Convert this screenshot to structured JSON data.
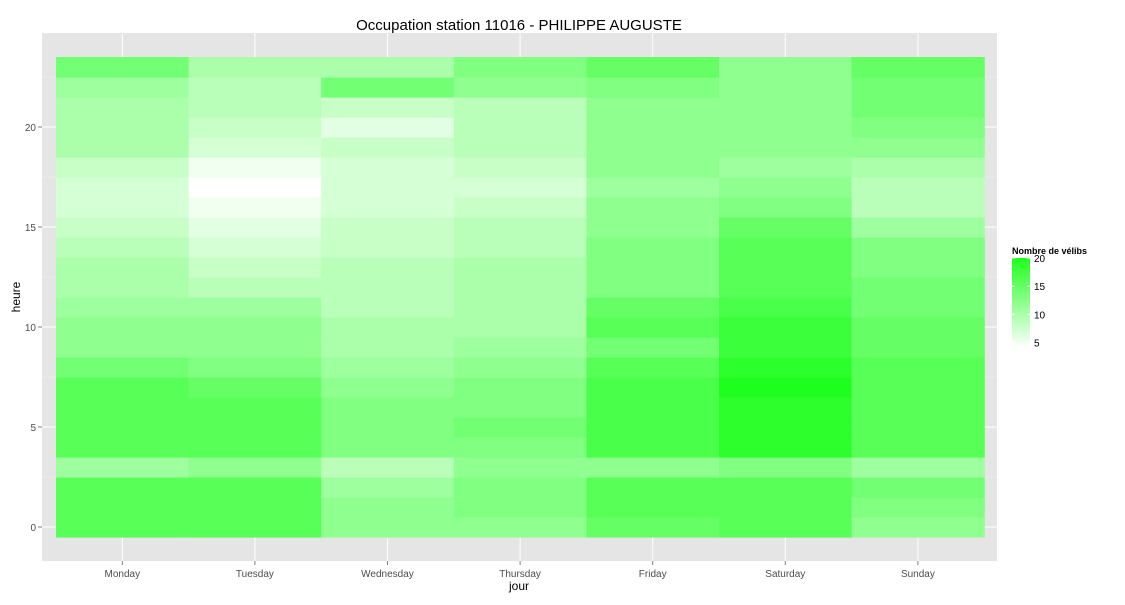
{
  "chart_data": {
    "type": "heatmap",
    "title": "Occupation station 11016 - PHILIPPE AUGUSTE",
    "xlabel": "jour",
    "ylabel": "heure",
    "categories": [
      "Monday",
      "Tuesday",
      "Wednesday",
      "Thursday",
      "Friday",
      "Saturday",
      "Sunday"
    ],
    "y": [
      0,
      1,
      2,
      3,
      4,
      5,
      6,
      7,
      8,
      9,
      10,
      11,
      12,
      13,
      14,
      15,
      16,
      17,
      18,
      19,
      20,
      21,
      22,
      23
    ],
    "ylim": [
      -0.5,
      23.5
    ],
    "yticks": [
      0,
      5,
      10,
      15,
      20
    ],
    "grid": true,
    "legend": {
      "title": "Nombre de vélibs",
      "position": "right",
      "min": 4,
      "max": 20,
      "ticks": [
        5,
        10,
        15,
        20
      ],
      "low_color": "#ffffff",
      "high_color": "#1fff1f"
    },
    "values": [
      [
        16,
        16,
        16,
        11,
        16,
        16,
        16,
        16,
        14,
        12,
        12,
        11,
        10,
        10,
        9,
        8,
        7,
        7,
        8,
        10,
        10,
        10,
        11,
        14
      ],
      [
        16,
        16,
        16,
        12,
        16,
        16,
        16,
        15,
        13,
        12,
        12,
        11,
        9,
        8,
        7,
        6,
        5,
        4,
        5,
        7,
        8,
        9,
        9,
        10
      ],
      [
        12,
        12,
        11,
        9,
        13,
        13,
        13,
        12,
        11,
        10,
        10,
        9,
        9,
        9,
        8,
        8,
        7,
        7,
        7,
        8,
        6,
        8,
        14,
        10
      ],
      [
        12,
        13,
        13,
        12,
        13,
        14,
        13,
        13,
        12,
        11,
        10,
        10,
        10,
        10,
        9,
        9,
        8,
        7,
        8,
        9,
        9,
        9,
        12,
        13
      ],
      [
        15,
        16,
        16,
        12,
        17,
        17,
        17,
        17,
        16,
        14,
        16,
        15,
        13,
        13,
        13,
        12,
        12,
        11,
        12,
        12,
        12,
        12,
        13,
        15
      ],
      [
        16,
        16,
        16,
        13,
        19,
        19,
        19,
        20,
        19,
        18,
        18,
        17,
        16,
        16,
        16,
        15,
        13,
        12,
        11,
        12,
        12,
        12,
        12,
        12
      ],
      [
        12,
        13,
        14,
        11,
        16,
        16,
        16,
        16,
        16,
        15,
        15,
        14,
        14,
        13,
        13,
        11,
        9,
        9,
        10,
        12,
        13,
        14,
        14,
        15
      ]
    ]
  }
}
